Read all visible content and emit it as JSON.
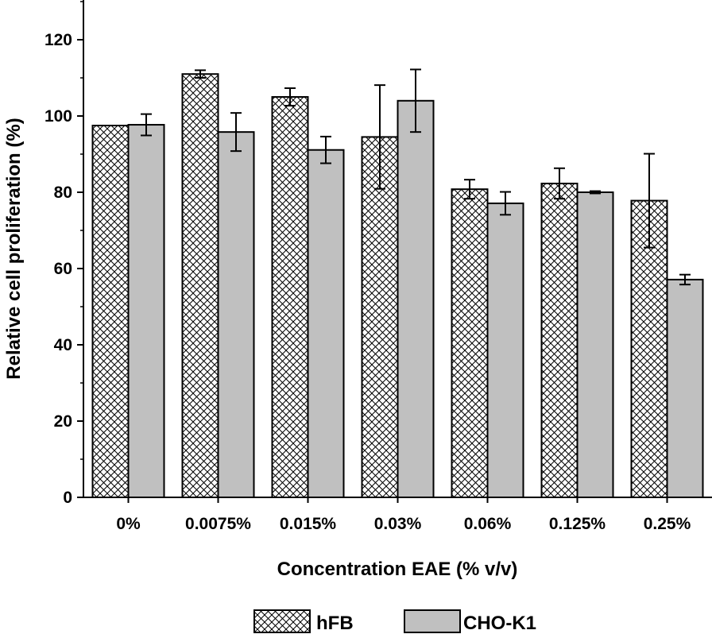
{
  "chart_data": {
    "type": "bar",
    "title": "",
    "xlabel": "Concentration EAE (% v/v)",
    "ylabel": "Relative cell proliferation (%)",
    "categories": [
      "0%",
      "0.0075%",
      "0.015%",
      "0.03%",
      "0.06%",
      "0.125%",
      "0.25%"
    ],
    "ylim": [
      0,
      130
    ],
    "yticks": [
      "0",
      "20",
      "40",
      "60",
      "80",
      "100",
      "120"
    ],
    "grid": false,
    "legend_position": "bottom",
    "series": [
      {
        "name": "hFB",
        "fill": "cross-hatch",
        "color": "#ffffff",
        "values": [
          97.5,
          111,
          105,
          94.5,
          80.8,
          82.3,
          77.8
        ],
        "error": [
          0,
          1,
          2.3,
          13.6,
          2.5,
          4,
          12.3
        ]
      },
      {
        "name": "CHO-K1",
        "fill": "solid",
        "color": "#c0c0c0",
        "values": [
          97.7,
          95.8,
          91.1,
          104,
          77.1,
          80,
          57.1
        ],
        "error": [
          2.8,
          5,
          3.5,
          8.2,
          3,
          0.3,
          1.3
        ]
      }
    ]
  }
}
